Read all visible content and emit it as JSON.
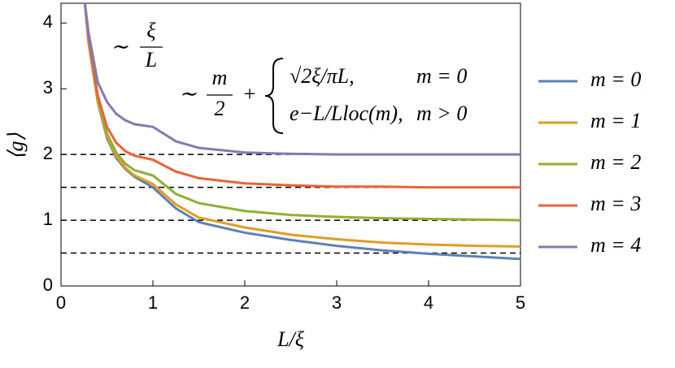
{
  "chart_data": {
    "type": "line",
    "x_label": "L/ξ",
    "y_label": "⟨g⟩",
    "x": [
      0.26,
      0.3,
      0.4,
      0.5,
      0.6,
      0.7,
      0.8,
      1,
      1.25,
      1.5,
      2,
      2.5,
      3,
      3.5,
      4,
      4.5,
      5
    ],
    "series": [
      {
        "name": "m = 0",
        "color": "#5e81b5",
        "values": [
          4.3,
          3.7,
          2.8,
          2.25,
          1.95,
          1.78,
          1.66,
          1.5,
          1.18,
          0.97,
          0.81,
          0.7,
          0.61,
          0.54,
          0.49,
          0.45,
          0.41
        ]
      },
      {
        "name": "m = 1",
        "color": "#e19c24",
        "values": [
          4.3,
          3.72,
          2.82,
          2.28,
          1.98,
          1.8,
          1.68,
          1.55,
          1.24,
          1.04,
          0.89,
          0.78,
          0.71,
          0.66,
          0.63,
          0.61,
          0.6
        ]
      },
      {
        "name": "m = 2",
        "color": "#8fb032",
        "values": [
          4.3,
          3.74,
          2.85,
          2.32,
          2.03,
          1.86,
          1.76,
          1.68,
          1.4,
          1.26,
          1.14,
          1.08,
          1.05,
          1.03,
          1.02,
          1.01,
          1.0
        ]
      },
      {
        "name": "m = 3",
        "color": "#eb6235",
        "values": [
          4.3,
          3.78,
          2.9,
          2.42,
          2.18,
          2.05,
          1.98,
          1.92,
          1.74,
          1.64,
          1.56,
          1.53,
          1.51,
          1.51,
          1.5,
          1.5,
          1.5
        ]
      },
      {
        "name": "m = 4",
        "color": "#8778b3",
        "values": [
          4.3,
          3.85,
          3.1,
          2.8,
          2.62,
          2.52,
          2.46,
          2.42,
          2.2,
          2.1,
          2.03,
          2.01,
          2.0,
          2.0,
          2.0,
          2.0,
          2.0
        ]
      }
    ],
    "xlim": [
      0,
      5
    ],
    "ylim": [
      0,
      4.3
    ],
    "xticks": [
      0,
      1,
      2,
      3,
      4,
      5
    ],
    "yticks": [
      0,
      1,
      2,
      3,
      4
    ],
    "reference_lines": [
      0.5,
      1,
      1.5,
      2
    ],
    "annotations": [
      {
        "prefix": "∼",
        "numerator": "ξ",
        "denominator": "L"
      },
      {
        "prefix": "∼",
        "numerator": "m",
        "denominator": "2",
        "plus": "+",
        "cases": [
          {
            "expr": "√2ξ/πL,",
            "cond": "m = 0"
          },
          {
            "expr": "e−L/Lloc(m),",
            "cond": "m > 0"
          }
        ]
      }
    ],
    "legend": "right"
  }
}
